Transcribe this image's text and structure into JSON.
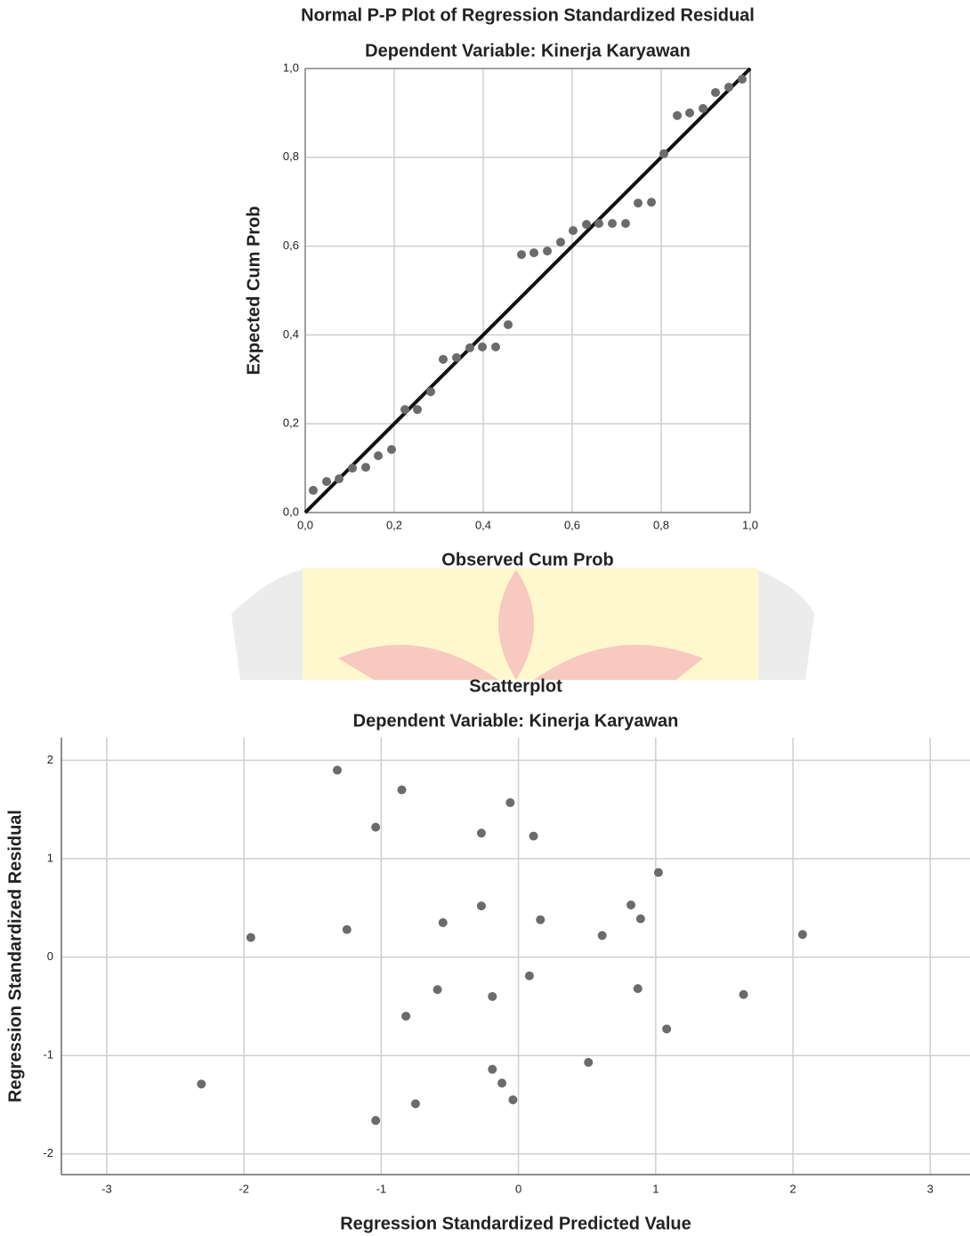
{
  "chart_data": [
    {
      "type": "scatter",
      "title": "Normal P-P Plot of Regression Standardized Residual",
      "subtitle": "Dependent Variable: Kinerja Karyawan",
      "x_label": "Observed Cum Prob",
      "y_label": "Expected Cum Prob",
      "color": "#6b6b6b",
      "grid": true,
      "reference_line": true,
      "x": [
        0.018,
        0.048,
        0.076,
        0.106,
        0.136,
        0.164,
        0.194,
        0.224,
        0.252,
        0.282,
        0.31,
        0.34,
        0.37,
        0.398,
        0.428,
        0.456,
        0.486,
        0.514,
        0.544,
        0.574,
        0.602,
        0.632,
        0.66,
        0.69,
        0.72,
        0.748,
        0.778,
        0.806,
        0.836,
        0.864,
        0.894,
        0.922,
        0.952,
        0.982
      ],
      "values": [
        0.05,
        0.07,
        0.076,
        0.1,
        0.102,
        0.128,
        0.142,
        0.232,
        0.232,
        0.272,
        0.345,
        0.349,
        0.371,
        0.373,
        0.373,
        0.423,
        0.581,
        0.585,
        0.589,
        0.609,
        0.635,
        0.649,
        0.651,
        0.651,
        0.651,
        0.697,
        0.699,
        0.808,
        0.894,
        0.9,
        0.91,
        0.946,
        0.958,
        0.976
      ],
      "xlim": [
        0,
        1
      ],
      "ylim": [
        0,
        1
      ],
      "xticks": [
        {
          "value": 0,
          "label": "0,0"
        },
        {
          "value": 0.2,
          "label": "0,2"
        },
        {
          "value": 0.4,
          "label": "0,4"
        },
        {
          "value": 0.6,
          "label": "0,6"
        },
        {
          "value": 0.8,
          "label": "0,8"
        },
        {
          "value": 1,
          "label": "1,0"
        }
      ],
      "yticks": [
        {
          "value": 0,
          "label": "0,0"
        },
        {
          "value": 0.2,
          "label": "0,2"
        },
        {
          "value": 0.4,
          "label": "0,4"
        },
        {
          "value": 0.6,
          "label": "0,6"
        },
        {
          "value": 0.8,
          "label": "0,8"
        },
        {
          "value": 1,
          "label": "1,0"
        }
      ]
    },
    {
      "type": "scatter",
      "title": "Scatterplot",
      "subtitle": "Dependent Variable: Kinerja Karyawan",
      "x_label": "Regression Standardized Predicted Value",
      "y_label": "Regression Standardized Residual",
      "color": "#6b6b6b",
      "grid": true,
      "reference_line": false,
      "x": [
        -1.32,
        -0.85,
        -0.06,
        -1.04,
        -0.27,
        0.11,
        1.02,
        -0.27,
        0.82,
        0.89,
        0.16,
        -0.55,
        -1.25,
        -1.95,
        0.61,
        2.07,
        0.08,
        -0.59,
        0.87,
        -0.19,
        1.64,
        -0.82,
        1.08,
        0.51,
        -0.19,
        -2.31,
        -0.12,
        -0.04,
        -0.75,
        -1.04
      ],
      "values": [
        1.9,
        1.7,
        1.57,
        1.32,
        1.26,
        1.23,
        0.86,
        0.52,
        0.53,
        0.39,
        0.38,
        0.35,
        0.28,
        0.2,
        0.22,
        0.23,
        -0.19,
        -0.33,
        -0.32,
        -0.4,
        -0.38,
        -0.6,
        -0.73,
        -1.07,
        -1.14,
        -1.29,
        -1.28,
        -1.45,
        -1.49,
        -1.66
      ],
      "xlim": [
        -3.33,
        3.29
      ],
      "ylim": [
        -2.21,
        2.23
      ],
      "xticks": [
        -3,
        -2,
        -1,
        0,
        1,
        2,
        3
      ],
      "yticks": [
        -2,
        -1,
        0,
        1,
        2
      ]
    }
  ]
}
